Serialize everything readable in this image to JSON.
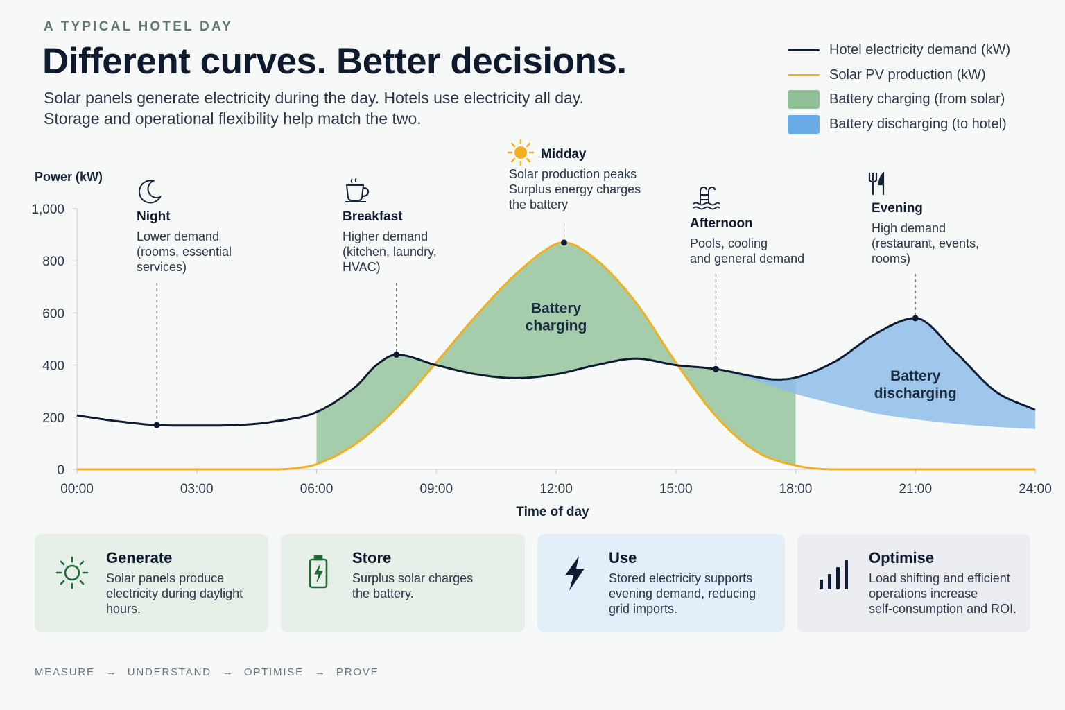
{
  "header": {
    "eyebrow": "A TYPICAL HOTEL DAY",
    "title": "Different curves. Better decisions.",
    "subtitle_line1": "Solar panels generate electricity during the day. Hotels use electricity all day.",
    "subtitle_line2": "Storage and operational flexibility help match the two."
  },
  "legend": [
    {
      "label": "Hotel electricity demand (kW)",
      "kind": "line",
      "color": "#0f1b33"
    },
    {
      "label": "Solar PV production (kW)",
      "kind": "line",
      "color": "#f2b01e"
    },
    {
      "label": "Battery charging (from solar)",
      "kind": "box",
      "color": "#8fc096"
    },
    {
      "label": "Battery discharging (to hotel)",
      "kind": "box",
      "color": "#6aaae6"
    }
  ],
  "chart_data": {
    "type": "line",
    "ylabel": "Power (kW)",
    "xlabel": "Time of day",
    "ylim": [
      0,
      1000
    ],
    "xlim": [
      0,
      24
    ],
    "y_ticks": [
      0,
      200,
      400,
      600,
      800,
      1000
    ],
    "y_tick_labels": [
      "0",
      "200",
      "400",
      "600",
      "800",
      "1,000"
    ],
    "x_ticks": [
      0,
      3,
      6,
      9,
      12,
      15,
      18,
      21,
      24
    ],
    "x_tick_labels": [
      "00:00",
      "03:00",
      "06:00",
      "09:00",
      "12:00",
      "15:00",
      "18:00",
      "21:00",
      "24:00"
    ],
    "grid": false,
    "series": [
      {
        "name": "Hotel electricity demand (kW)",
        "color": "#0f1b33",
        "x": [
          0,
          1,
          2,
          3,
          4,
          5,
          6,
          7,
          7.5,
          8,
          9,
          10,
          11,
          12,
          13,
          14,
          15,
          16,
          17,
          17.5,
          18,
          19,
          20,
          21,
          22,
          23,
          24
        ],
        "values": [
          207,
          185,
          170,
          168,
          170,
          185,
          220,
          320,
          400,
          440,
          400,
          365,
          350,
          365,
          400,
          425,
          400,
          385,
          355,
          345,
          352,
          415,
          520,
          580,
          450,
          300,
          228
        ]
      },
      {
        "name": "Solar PV production (kW)",
        "color": "#f2b01e",
        "x": [
          0,
          5,
          5.5,
          6,
          7,
          8,
          9,
          10,
          11,
          12,
          12.2,
          13,
          14,
          15,
          16,
          17,
          18,
          19,
          24
        ],
        "values": [
          0,
          0,
          5,
          20,
          100,
          235,
          410,
          590,
          750,
          865,
          870,
          805,
          640,
          410,
          205,
          70,
          15,
          0,
          0
        ]
      },
      {
        "name": "Battery discharging (to hotel)",
        "color": "#6aaae6",
        "x": [
          16,
          17,
          18,
          19,
          20,
          21,
          22,
          23,
          24
        ],
        "values": [
          385,
          340,
          290,
          250,
          215,
          192,
          175,
          163,
          155
        ]
      }
    ],
    "annotations": [
      {
        "title": "Night",
        "lines": [
          "Lower demand",
          "(rooms, essential",
          "services)"
        ],
        "icon": "moon-icon",
        "x": 2,
        "y": 170
      },
      {
        "title": "Breakfast",
        "lines": [
          "Higher demand",
          "(kitchen, laundry,",
          "HVAC)"
        ],
        "icon": "coffee-cup-icon",
        "x": 8,
        "y": 440
      },
      {
        "title": "Midday",
        "lines": [
          "Solar production peaks",
          "Surplus energy charges",
          "the battery"
        ],
        "icon": "sun-icon",
        "x": 12.2,
        "y": 870
      },
      {
        "title": "Afternoon",
        "lines": [
          "Pools, cooling",
          "and general demand"
        ],
        "icon": "pool-icon",
        "x": 16,
        "y": 385
      },
      {
        "title": "Evening",
        "lines": [
          "High demand",
          "(restaurant, events,",
          "rooms)"
        ],
        "icon": "fork-knife-icon",
        "x": 21,
        "y": 580
      }
    ],
    "area_labels": [
      {
        "lines": [
          "Battery",
          "charging"
        ],
        "x": 12,
        "y": 600
      },
      {
        "lines": [
          "Battery",
          "discharging"
        ],
        "x": 21,
        "y": 340
      }
    ]
  },
  "cards": [
    {
      "title": "Generate",
      "text": [
        "Solar panels produce",
        "electricity during daylight",
        "hours."
      ],
      "icon": "sun-outline-icon",
      "bg": "#e6f0e8",
      "accent": "#1d6a34"
    },
    {
      "title": "Store",
      "text": [
        "Surplus solar charges",
        "the battery."
      ],
      "icon": "battery-charging-icon",
      "bg": "#e7efe9",
      "accent": "#1d6a34"
    },
    {
      "title": "Use",
      "text": [
        "Stored electricity supports",
        "evening demand, reducing",
        "grid imports."
      ],
      "icon": "lightning-icon",
      "bg": "#e3eef9",
      "accent": "#0f1b33"
    },
    {
      "title": "Optimise",
      "text": [
        "Load shifting and efficient",
        "operations increase",
        "self-consumption and ROI."
      ],
      "icon": "bar-chart-icon",
      "bg": "#ebedf1",
      "accent": "#0f1b33"
    }
  ],
  "footer": {
    "steps": [
      "MEASURE",
      "UNDERSTAND",
      "OPTIMISE",
      "PROVE"
    ],
    "arrow": "→"
  }
}
